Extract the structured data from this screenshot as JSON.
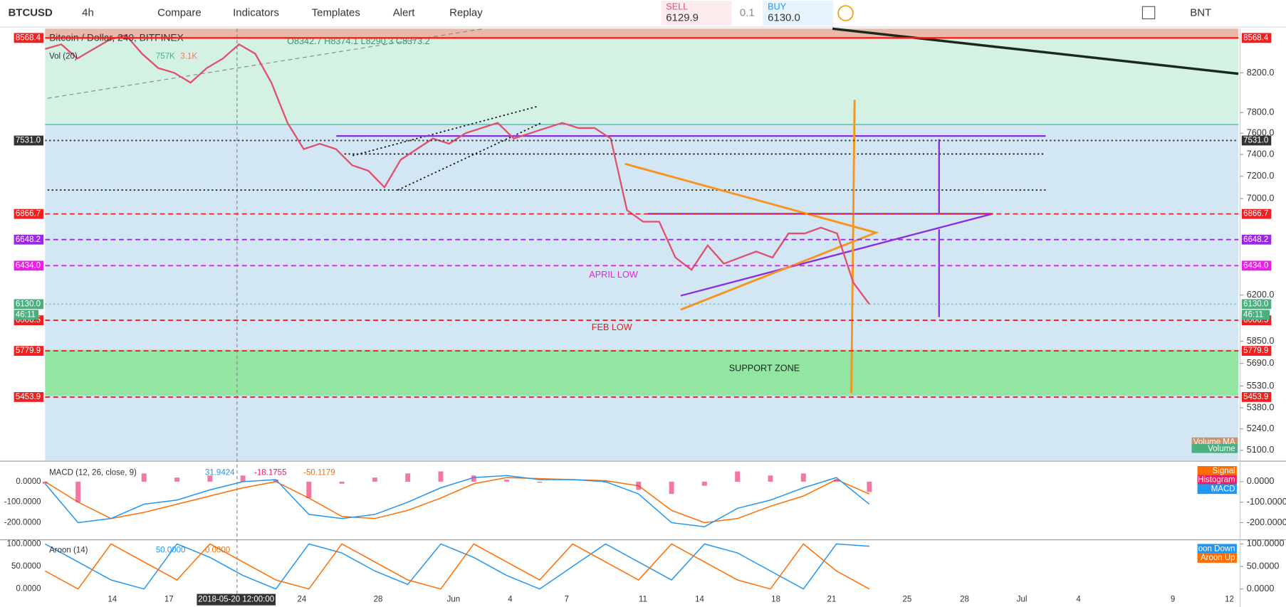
{
  "toolbar": {
    "symbol": "BTCUSD",
    "interval": "4h",
    "buttons": [
      "Compare",
      "Indicators",
      "Templates",
      "Alert",
      "Replay"
    ],
    "sell_label": "SELL",
    "sell_price": "6129.9",
    "quantity": "0.1",
    "buy_label": "BUY",
    "buy_price": "6130.0",
    "currency": "BNT"
  },
  "chart_data": [
    {
      "type": "line",
      "title": "Bitcoin / Dollar, 240, BITFINEX",
      "ohlc_legend": "O8342.7 H8374.1 L8290.3 C8373.2",
      "volume_legend": "Vol (20)",
      "volume_values": [
        "757K",
        "3.1K"
      ],
      "color": "#e0506b",
      "values": [
        8450,
        8500,
        8350,
        8450,
        8550,
        8600,
        8400,
        8250,
        8200,
        8100,
        8250,
        8350,
        8500,
        8400,
        8100,
        7700,
        7450,
        7500,
        7450,
        7300,
        7250,
        7100,
        7350,
        7450,
        7550,
        7500,
        7600,
        7650,
        7700,
        7550,
        7600,
        7650,
        7700,
        7650,
        7650,
        7550,
        6900,
        6800,
        6800,
        6500,
        6400,
        6600,
        6450,
        6500,
        6550,
        6500,
        6700,
        6700,
        6750,
        6700,
        6300,
        6130
      ],
      "log_scale": true,
      "ylim": [
        5036,
        8669
      ],
      "yticks": [
        {
          "value": 8200,
          "label": "8200.0"
        },
        {
          "value": 7800,
          "label": "7800.0"
        },
        {
          "value": 7600,
          "label": "7600.0"
        },
        {
          "value": 7400,
          "label": "7400.0"
        },
        {
          "value": 7200,
          "label": "7200.0"
        },
        {
          "value": 7000,
          "label": "7000.0"
        },
        {
          "value": 6200,
          "label": "6200.0"
        },
        {
          "value": 5850,
          "label": "5850.0"
        },
        {
          "value": 5690,
          "label": "5690.0"
        },
        {
          "value": 5530,
          "label": "5530.0"
        },
        {
          "value": 5380,
          "label": "5380.0"
        },
        {
          "value": 5240,
          "label": "5240.0"
        },
        {
          "value": 5100,
          "label": "5100.0"
        }
      ],
      "levels": [
        {
          "value": 8568.4,
          "label": "8568.4",
          "color": "#f02020"
        },
        {
          "value": 7531,
          "label": "7531.0",
          "color": "#333333"
        },
        {
          "value": 6866.7,
          "label": "6866.7",
          "color": "#f02020"
        },
        {
          "value": 6648.2,
          "label": "6648.2",
          "color": "#9c27e0"
        },
        {
          "value": 6434,
          "label": "6434.0",
          "color": "#e91ee9"
        },
        {
          "value": 6130,
          "label": "6130.0",
          "color": "#4caf80"
        },
        {
          "value": 6006.5,
          "label": "6006.5",
          "color": "#f02020"
        },
        {
          "value": 5779.9,
          "label": "5779.9",
          "color": "#f02020"
        },
        {
          "value": 5453.9,
          "label": "5453.9",
          "color": "#f02020"
        }
      ],
      "countdown": "46:11",
      "annotations": [
        "APRIL LOW",
        "FEB LOW",
        "SUPPORT ZONE"
      ],
      "x_labels": [
        "14",
        "17",
        "24",
        "28",
        "Jun",
        "4",
        "7",
        "11",
        "14",
        "18",
        "21",
        "25",
        "28",
        "Jul",
        "4",
        "9",
        "12"
      ],
      "crosshair_label": "2018-05-20 12:00:00",
      "right_labels": [
        "Volume MA",
        "Volume"
      ]
    },
    {
      "type": "line",
      "title": "MACD (12, 26, close, 9)",
      "legend_values": [
        "31.9424",
        "-18.1755",
        "-50.1179"
      ],
      "ylim": [
        -276,
        92
      ],
      "yticks": [
        {
          "value": 0,
          "label": "0.0000"
        },
        {
          "value": -100,
          "label": "-100.0000"
        },
        {
          "value": -200,
          "label": "-200.0000"
        }
      ],
      "series": [
        {
          "name": "Signal",
          "color": "#ff6d00",
          "values": [
            0,
            -100,
            -180,
            -150,
            -110,
            -70,
            -30,
            0,
            -80,
            -170,
            -180,
            -140,
            -80,
            -10,
            20,
            15,
            10,
            5,
            -20,
            -140,
            -200,
            -180,
            -120,
            -70,
            10,
            -60
          ]
        },
        {
          "name": "Histogram",
          "color": "#e91e63",
          "values": [
            -10,
            -100,
            0,
            40,
            20,
            30,
            30,
            10,
            -80,
            -10,
            20,
            40,
            50,
            30,
            10,
            -5,
            0,
            -5,
            -40,
            -60,
            -20,
            50,
            30,
            40,
            10,
            -50
          ]
        },
        {
          "name": "MACD",
          "color": "#2196f3",
          "values": [
            -10,
            -200,
            -180,
            -110,
            -90,
            -40,
            0,
            10,
            -160,
            -180,
            -160,
            -100,
            -30,
            20,
            30,
            10,
            10,
            0,
            -60,
            -200,
            -220,
            -130,
            -90,
            -30,
            20,
            -110
          ]
        }
      ]
    },
    {
      "type": "line",
      "title": "Aroon (14)",
      "legend_values": [
        "50.0000",
        "0.0000"
      ],
      "ylim": [
        -20,
        107.3
      ],
      "yticks": [
        {
          "value": 100,
          "label": "100.0000"
        },
        {
          "value": 50,
          "label": "50.0000"
        },
        {
          "value": 0,
          "label": "0.0000"
        }
      ],
      "series": [
        {
          "name": "Aroon Down",
          "color": "#2196f3",
          "values": [
            100,
            60,
            20,
            0,
            100,
            70,
            30,
            0,
            100,
            80,
            40,
            10,
            100,
            70,
            30,
            0,
            50,
            100,
            60,
            20,
            100,
            80,
            40,
            0,
            100,
            95
          ]
        },
        {
          "name": "Aroon Up",
          "color": "#ff6d00",
          "values": [
            40,
            0,
            100,
            60,
            20,
            100,
            60,
            20,
            0,
            100,
            60,
            20,
            0,
            100,
            60,
            20,
            100,
            60,
            20,
            100,
            60,
            20,
            0,
            100,
            40,
            0
          ]
        }
      ]
    }
  ]
}
